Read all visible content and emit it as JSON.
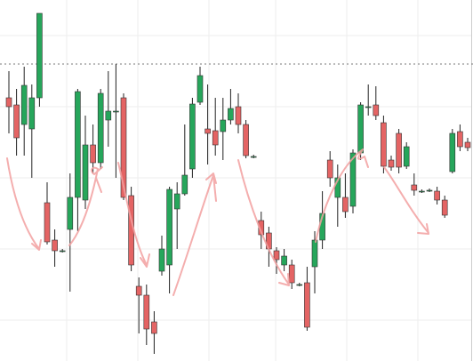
{
  "chart_data": {
    "type": "candlestick",
    "open": [
      296,
      288,
      266,
      261,
      296,
      178,
      136,
      124,
      148,
      184,
      181,
      243,
      223,
      271,
      281,
      296,
      186,
      84,
      74,
      44,
      101,
      108,
      171,
      188,
      216,
      291,
      261,
      259,
      258,
      271,
      286,
      266,
      230,
      158,
      144,
      124,
      108,
      108,
      86,
      88,
      106,
      136,
      226,
      184,
      184,
      174,
      234,
      286,
      288,
      268,
      226,
      256,
      219,
      198,
      191,
      192,
      191,
      181,
      213,
      258,
      246
    ],
    "high": [
      326,
      306,
      331,
      311,
      391,
      201,
      148,
      126,
      211,
      306,
      276,
      266,
      306,
      326,
      334,
      301,
      196,
      94,
      86,
      56,
      141,
      196,
      201,
      266,
      296,
      331,
      311,
      296,
      296,
      306,
      301,
      271,
      232,
      168,
      151,
      128,
      126,
      114,
      88,
      106,
      146,
      191,
      236,
      221,
      211,
      238,
      291,
      311,
      309,
      276,
      231,
      261,
      246,
      211,
      193,
      194,
      196,
      186,
      261,
      266,
      251
    ],
    "low": [
      256,
      231,
      231,
      206,
      286,
      131,
      106,
      122,
      78,
      146,
      171,
      211,
      216,
      241,
      206,
      181,
      101,
      31,
      18,
      8,
      96,
      76,
      126,
      186,
      206,
      288,
      221,
      231,
      226,
      266,
      256,
      228,
      228,
      126,
      106,
      98,
      101,
      81,
      84,
      34,
      76,
      126,
      196,
      151,
      161,
      166,
      226,
      276,
      271,
      211,
      214,
      211,
      216,
      186,
      189,
      190,
      176,
      161,
      211,
      236,
      236
    ],
    "close": [
      286,
      251,
      310,
      296,
      391,
      134,
      124,
      124,
      184,
      303,
      243,
      223,
      301,
      281,
      281,
      184,
      108,
      74,
      36,
      31,
      126,
      193,
      188,
      209,
      289,
      321,
      256,
      243,
      271,
      284,
      266,
      231,
      230,
      142,
      126,
      114,
      118,
      88,
      86,
      38,
      136,
      166,
      206,
      206,
      168,
      234,
      288,
      286,
      276,
      219,
      218,
      218,
      241,
      192,
      191,
      192,
      181,
      164,
      256,
      241,
      240
    ],
    "ylim": [
      0,
      406
    ],
    "reference_line": 334,
    "up_color": "#26a65b",
    "down_color": "#e46464"
  }
}
